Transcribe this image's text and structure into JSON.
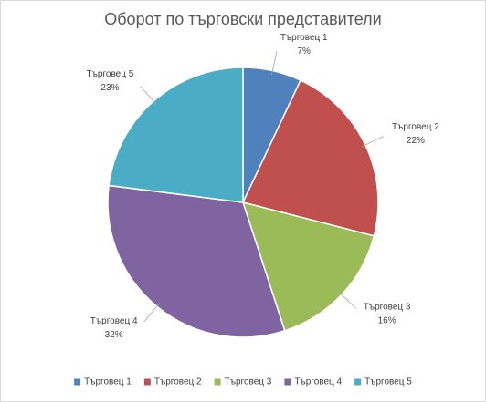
{
  "chart_data": {
    "type": "pie",
    "title": "Оборот по търговски представители",
    "categories": [
      "Търговец 1",
      "Търговец 2",
      "Търговец 3",
      "Търговец 4",
      "Търговец 5"
    ],
    "values": [
      7,
      22,
      16,
      32,
      23
    ],
    "value_labels": [
      "7%",
      "22%",
      "16%",
      "32%",
      "23%"
    ],
    "colors": [
      "#4f81bd",
      "#c0504d",
      "#9bbb59",
      "#8064a2",
      "#4bacc6"
    ],
    "legend": "bottom"
  }
}
